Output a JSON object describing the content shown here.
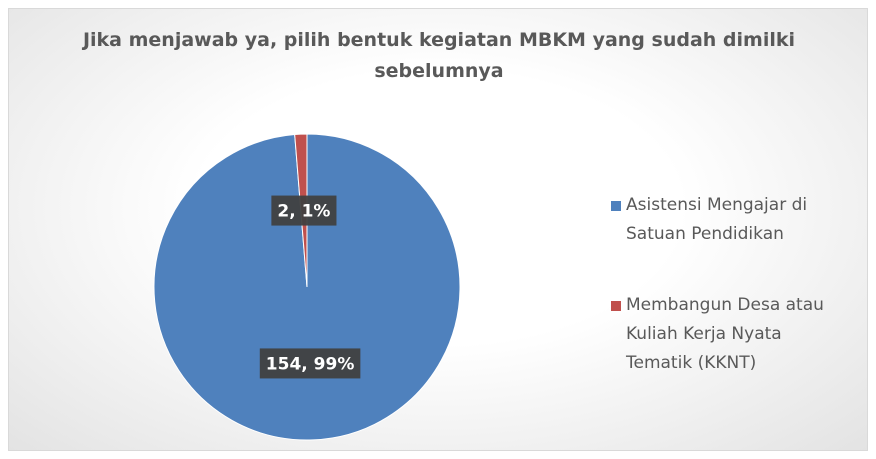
{
  "chart_data": {
    "type": "pie",
    "title": "Jika menjawab ya, pilih bentuk kegiatan MBKM yang sudah dimilki sebelumnya",
    "categories": [
      "Asistensi Mengajar di Satuan Pendidikan",
      "Membangun Desa atau Kuliah Kerja Nyata Tematik (KKNT)"
    ],
    "values": [
      154,
      2
    ],
    "value_labels": [
      "154, 99%",
      "2, 1%"
    ],
    "colors": [
      "#4f81bd",
      "#c0504d"
    ],
    "legend": "right"
  }
}
